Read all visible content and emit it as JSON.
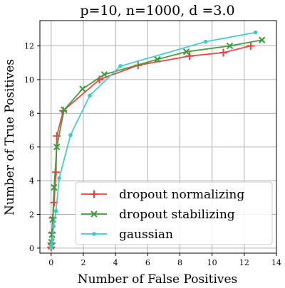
{
  "chart_data": {
    "type": "line",
    "title": "p=10, n=1000, d =3.0",
    "xlabel": "Number of False Positives",
    "ylabel": "Number of True Positives",
    "xlim": [
      -0.7,
      14.0
    ],
    "ylim": [
      -0.3,
      13.5
    ],
    "xticks": [
      0,
      2,
      4,
      6,
      8,
      10,
      12,
      14
    ],
    "yticks": [
      0,
      2,
      4,
      6,
      8,
      10,
      12
    ],
    "grid": true,
    "legend_position": "lower-right",
    "series": [
      {
        "name": "dropout normalizing",
        "color": "#f03c3c",
        "marker": "plus",
        "x": [
          0.0,
          0.02,
          0.05,
          0.1,
          0.18,
          0.3,
          0.35,
          0.75,
          3.0,
          5.4,
          8.6,
          10.7,
          12.4
        ],
        "y": [
          0.05,
          0.3,
          0.9,
          1.8,
          2.7,
          4.5,
          6.65,
          8.15,
          10.0,
          10.85,
          11.4,
          11.6,
          12.0
        ]
      },
      {
        "name": "dropout stabilizing",
        "color": "#3a9a3a",
        "marker": "x",
        "x": [
          0.0,
          0.02,
          0.05,
          0.1,
          0.18,
          0.35,
          0.8,
          1.95,
          3.3,
          6.6,
          8.4,
          11.1,
          13.1
        ],
        "y": [
          0.1,
          0.35,
          0.8,
          1.7,
          3.6,
          6.0,
          8.2,
          9.45,
          10.3,
          11.2,
          11.65,
          12.0,
          12.35
        ]
      },
      {
        "name": "gaussian",
        "color": "#40c8c8",
        "marker": "dot",
        "x": [
          0.0,
          0.01,
          0.03,
          0.07,
          0.15,
          0.3,
          0.5,
          1.2,
          2.4,
          4.3,
          9.6,
          12.7
        ],
        "y": [
          0.05,
          0.1,
          0.2,
          0.5,
          1.3,
          2.2,
          4.15,
          6.7,
          9.05,
          10.8,
          12.25,
          12.8
        ]
      }
    ]
  }
}
